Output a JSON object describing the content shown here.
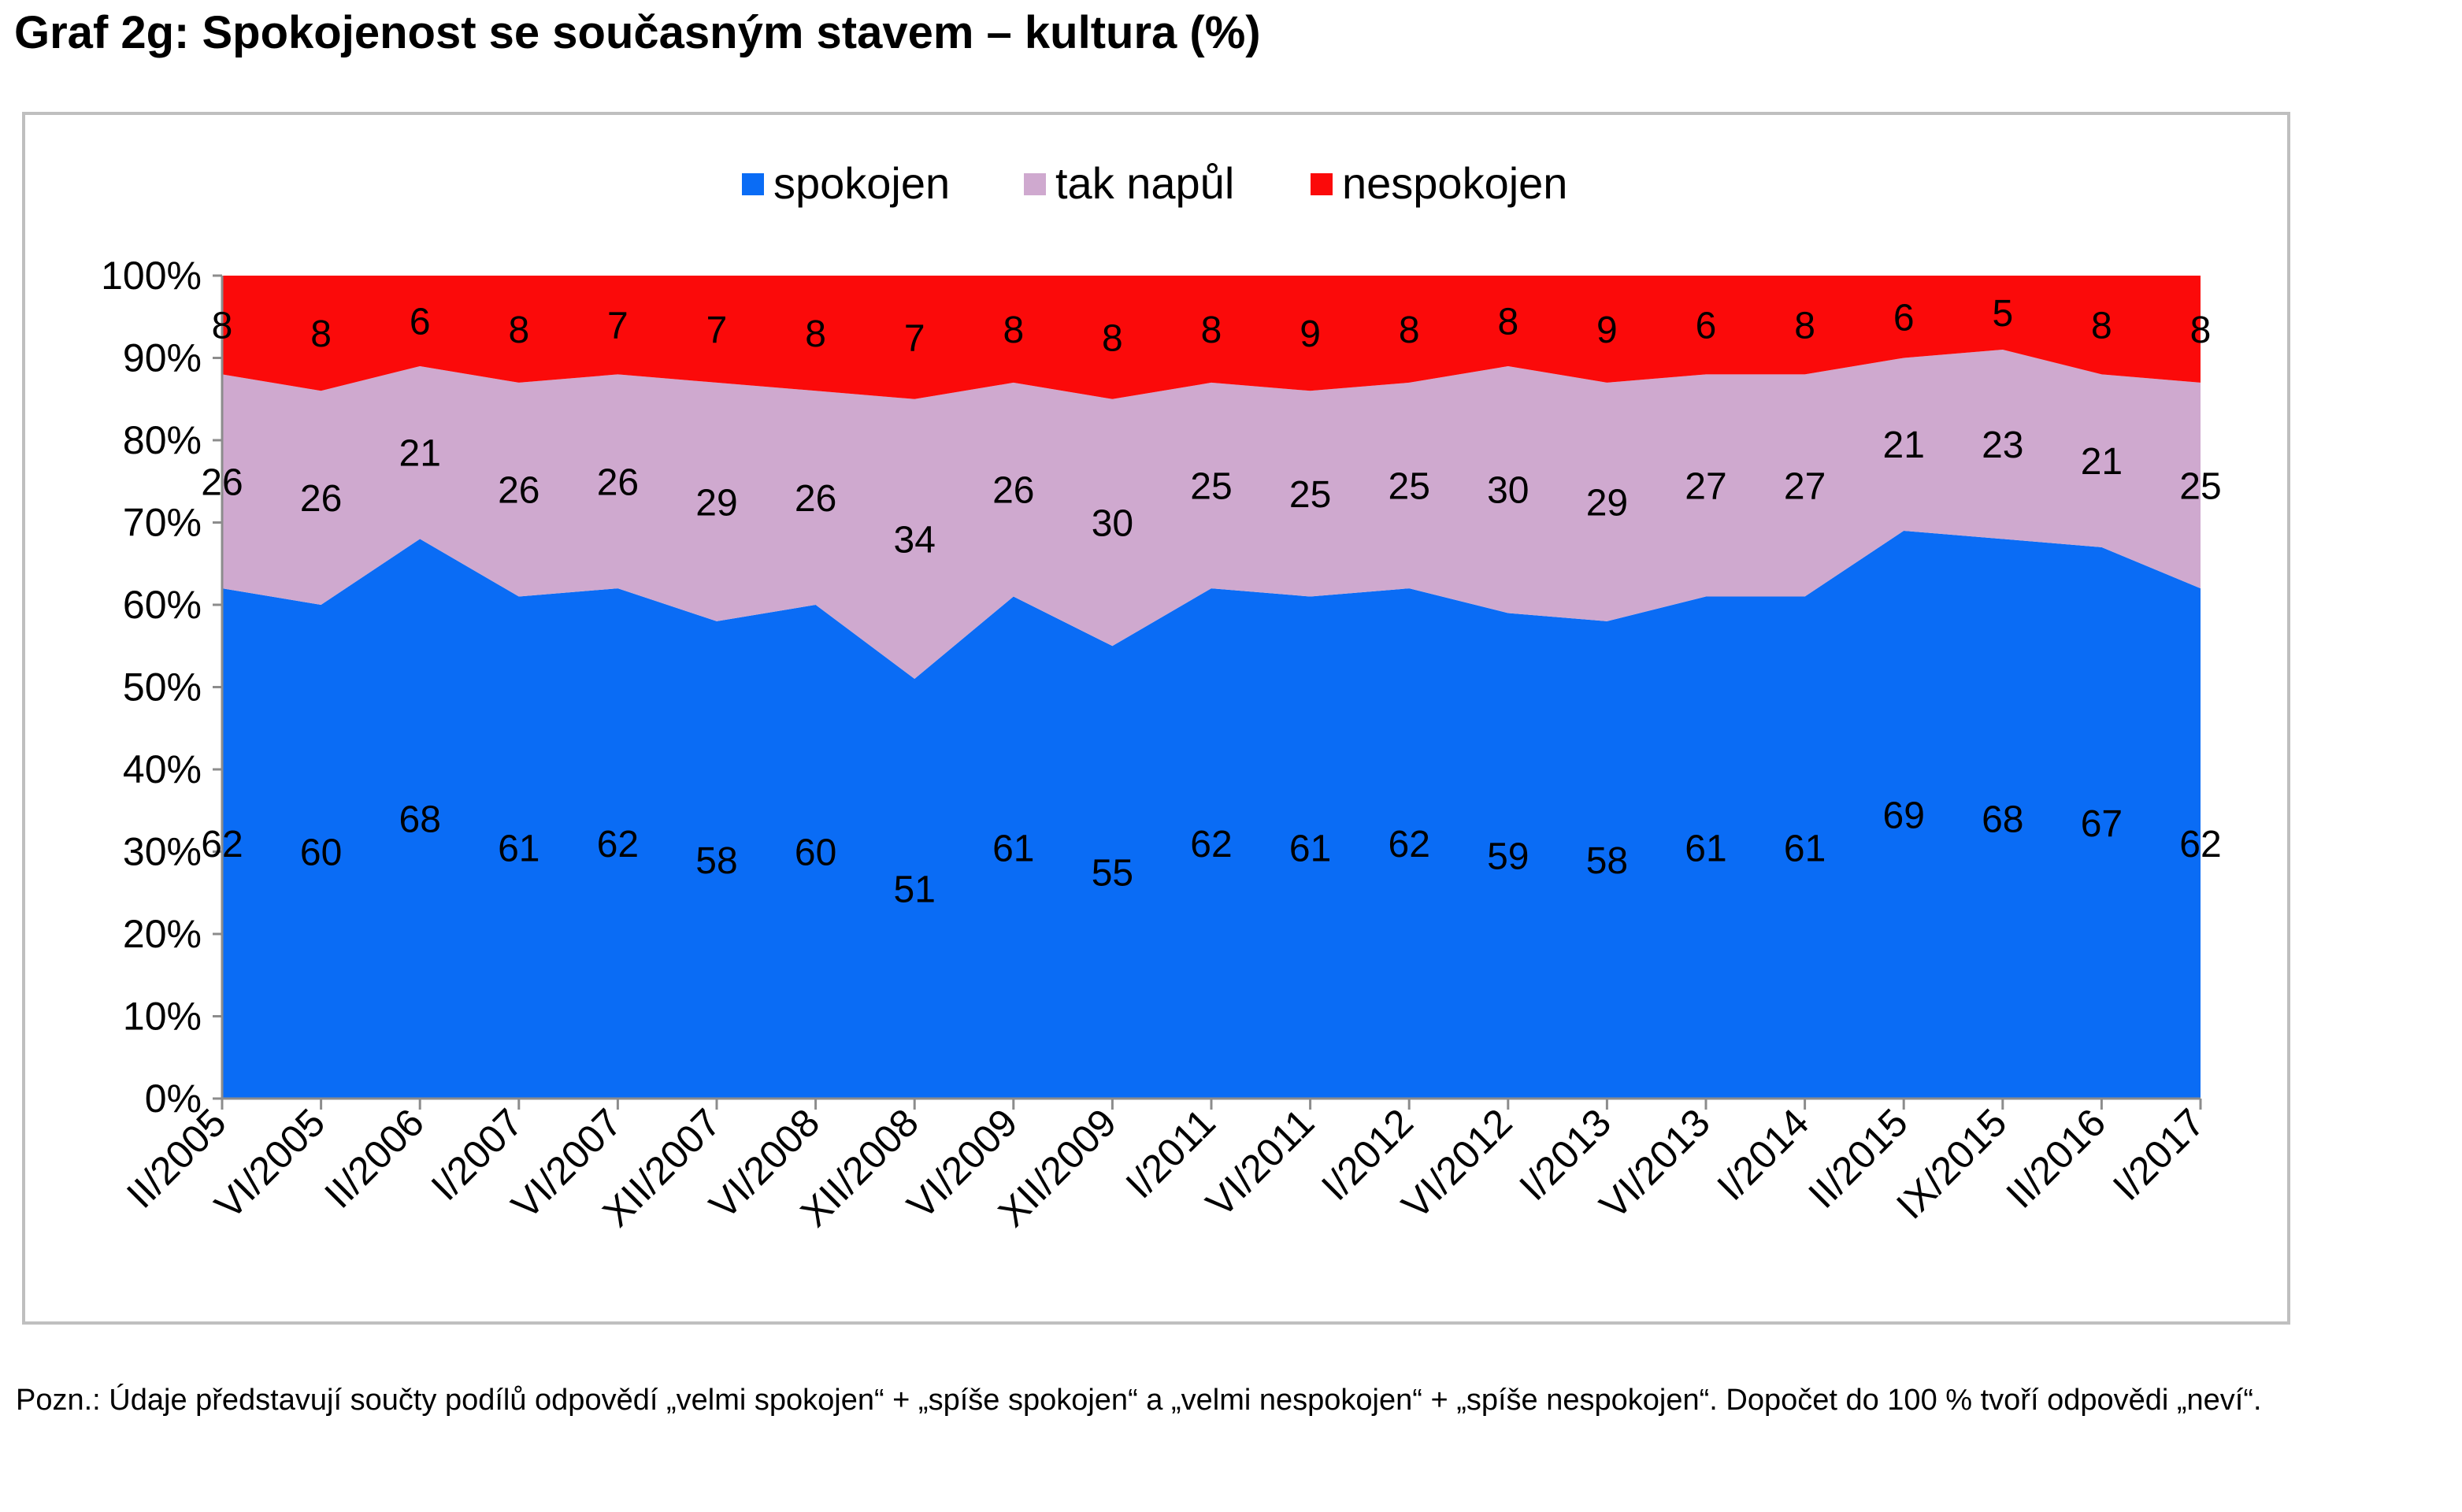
{
  "page": {
    "title": "Graf 2g: Spokojenost se současným stavem – kultura (%)",
    "note": "Pozn.: Údaje představují součty podílů odpovědí „velmi spokojen“ + „spíše spokojen“ a „velmi nespokojen“ + „spíše nespokojen“. Dopočet do 100 % tvoří odpovědi „neví“."
  },
  "chart_data": {
    "type": "area",
    "stacked": "percent",
    "categories": [
      "II/2005",
      "VI/2005",
      "II/2006",
      "I/2007",
      "VI/2007",
      "XII/2007",
      "VI/2008",
      "XII/2008",
      "VI/2009",
      "XII/2009",
      "I/2011",
      "VI/2011",
      "I/2012",
      "VI/2012",
      "I/2013",
      "VI/2013",
      "I/2014",
      "II/2015",
      "IX/2015",
      "II/2016",
      "I/2017"
    ],
    "series": [
      {
        "name": "spokojen",
        "color": "#0a6cf5",
        "values": [
          62,
          60,
          68,
          61,
          62,
          58,
          60,
          51,
          61,
          55,
          62,
          61,
          62,
          59,
          58,
          61,
          61,
          69,
          68,
          67,
          62
        ]
      },
      {
        "name": "tak napůl",
        "color": "#cfa9cf",
        "values": [
          26,
          26,
          21,
          26,
          26,
          29,
          26,
          34,
          26,
          30,
          25,
          25,
          25,
          30,
          29,
          27,
          27,
          21,
          23,
          21,
          25
        ]
      },
      {
        "name": "nespokojen",
        "color": "#fb0a0a",
        "values": [
          8,
          8,
          6,
          8,
          7,
          7,
          8,
          7,
          8,
          8,
          8,
          9,
          8,
          8,
          9,
          6,
          8,
          6,
          5,
          8,
          8
        ]
      }
    ],
    "y_ticks": [
      "0%",
      "10%",
      "20%",
      "30%",
      "40%",
      "50%",
      "60%",
      "70%",
      "80%",
      "90%",
      "100%"
    ],
    "ylim": [
      0,
      100
    ],
    "legend": "top-center",
    "grid": false
  }
}
